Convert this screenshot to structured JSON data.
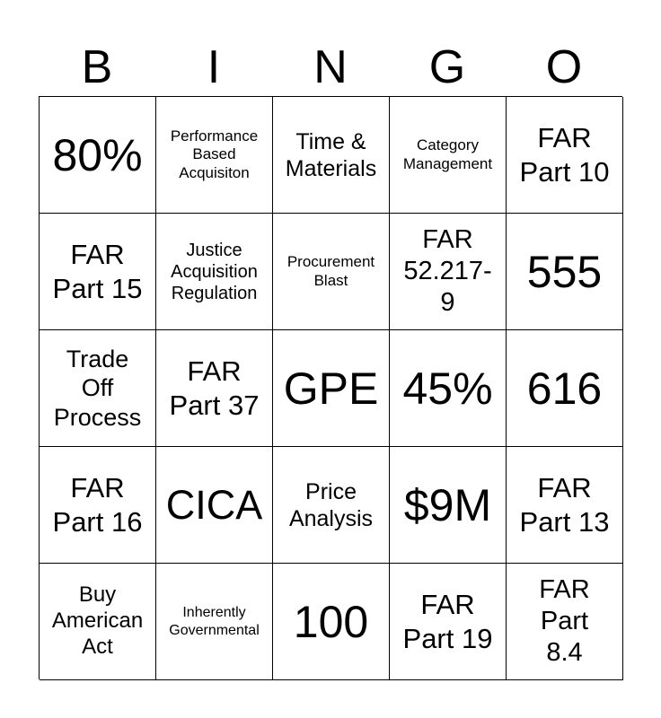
{
  "header": [
    "B",
    "I",
    "N",
    "G",
    "O"
  ],
  "cells": [
    "80%",
    "Performance\nBased\nAcquisiton",
    "Time &\nMaterials",
    "Category\nManagement",
    "FAR\nPart 10",
    "FAR\nPart 15",
    "Justice\nAcquisition\nRegulation",
    "Procurement\nBlast",
    "FAR\n52.217-\n9",
    "555",
    "Trade\nOff\nProcess",
    "FAR\nPart 37",
    "GPE",
    "45%",
    "616",
    "FAR\nPart 16",
    "CICA",
    "Price\nAnalysis",
    "$9M",
    "FAR\nPart 13",
    "Buy\nAmerican\nAct",
    "Inherently\nGovernmental",
    "100",
    "FAR\nPart 19",
    "FAR\nPart\n8.4"
  ]
}
